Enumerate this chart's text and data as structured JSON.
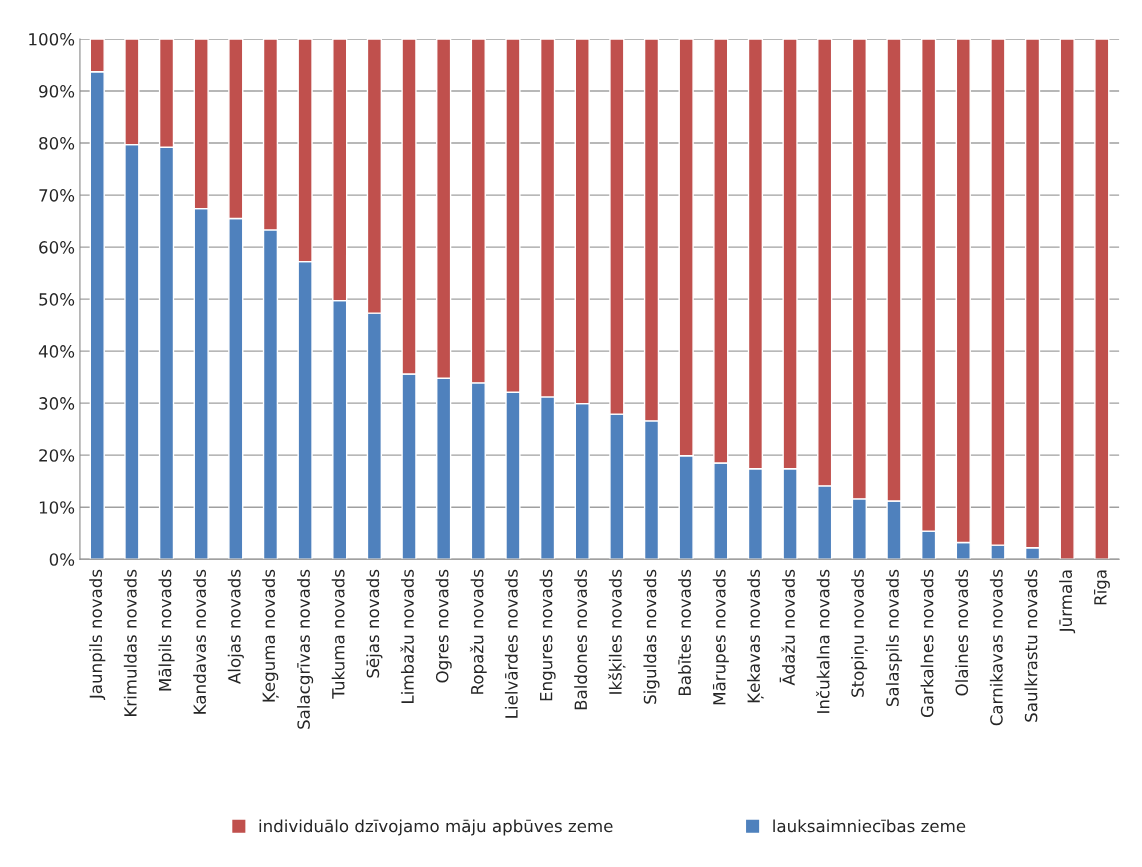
{
  "chart_data": {
    "type": "bar",
    "stacked": true,
    "categories": [
      "Jaunpils novads",
      "Krimuldas novads",
      "Mālpils novads",
      "Kandavas novads",
      "Alojas novads",
      "Ķeguma novads",
      "Salacgrīvas novads",
      "Tukuma novads",
      "Sējas novads",
      "Limbažu novads",
      "Ogres novads",
      "Ropažu novads",
      "Lielvārdes novads",
      "Engures novads",
      "Baldones novads",
      "Ikšķiles novads",
      "Siguldas novads",
      "Babītes novads",
      "Mārupes novads",
      "Ķekavas novads",
      "Ādažu novads",
      "Inčukalna novads",
      "Stopiņu novads",
      "Salaspils novads",
      "Garkalnes novads",
      "Olaines novads",
      "Carnikavas novads",
      "Saulkrastu novads",
      "Jūrmala",
      "Rīga"
    ],
    "series": [
      {
        "name": "lauksaimniecības zeme",
        "color": "#4f81bd",
        "values": [
          93.7,
          79.7,
          79.2,
          67.4,
          65.5,
          63.3,
          57.2,
          49.7,
          47.3,
          35.6,
          34.8,
          33.9,
          32.1,
          31.2,
          29.9,
          27.9,
          26.6,
          19.9,
          18.5,
          17.4,
          17.4,
          14.1,
          11.6,
          11.2,
          5.4,
          3.2,
          2.7,
          2.2,
          0,
          0
        ]
      },
      {
        "name": "individuālo dzīvojamo māju apbūves zeme",
        "color": "#c0504d",
        "values": [
          6.3,
          20.3,
          20.8,
          32.6,
          34.5,
          36.7,
          42.8,
          50.3,
          52.7,
          64.4,
          65.2,
          66.1,
          67.9,
          68.8,
          70.1,
          72.1,
          73.4,
          80.1,
          81.5,
          82.6,
          82.6,
          85.9,
          88.4,
          88.8,
          94.6,
          96.8,
          97.3,
          97.8,
          100,
          100
        ]
      }
    ],
    "ylim": [
      0,
      100
    ],
    "yticks": [
      {
        "value": 0,
        "label": "0%"
      },
      {
        "value": 10,
        "label": "10%"
      },
      {
        "value": 20,
        "label": "20%"
      },
      {
        "value": 30,
        "label": "30%"
      },
      {
        "value": 40,
        "label": "40%"
      },
      {
        "value": 50,
        "label": "50%"
      },
      {
        "value": 60,
        "label": "60%"
      },
      {
        "value": 70,
        "label": "70%"
      },
      {
        "value": 80,
        "label": "80%"
      },
      {
        "value": 90,
        "label": "90%"
      },
      {
        "value": 100,
        "label": "100%"
      }
    ],
    "grid": "y",
    "legend": "bottom"
  }
}
